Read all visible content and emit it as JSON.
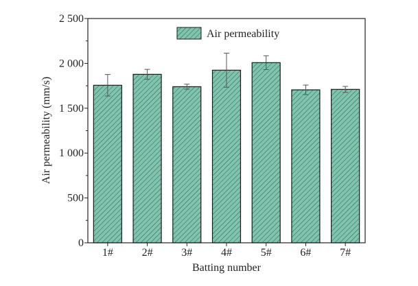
{
  "chart_data": {
    "type": "bar",
    "title": "",
    "xlabel": "Batting number",
    "ylabel": "Air permeability (mm/s)",
    "categories": [
      "1#",
      "2#",
      "3#",
      "4#",
      "5#",
      "6#",
      "7#"
    ],
    "series": [
      {
        "name": "Air permeability",
        "values": [
          1756,
          1878,
          1740,
          1924,
          2008,
          1705,
          1710
        ],
        "errors": [
          120,
          55,
          28,
          190,
          77,
          53,
          33
        ]
      }
    ],
    "ylim": [
      0,
      2500
    ],
    "yticks": [
      0,
      500,
      1000,
      1500,
      2000,
      2500
    ],
    "ytick_labels": [
      "0",
      "500",
      "1 000",
      "1 500",
      "2 000",
      "2 500"
    ],
    "legend_position": "top-center",
    "grid": false,
    "colors": {
      "bar_fill": "#7fc4ae",
      "hatch": "#2f5a4c",
      "edge": "#1a1a1a"
    }
  }
}
